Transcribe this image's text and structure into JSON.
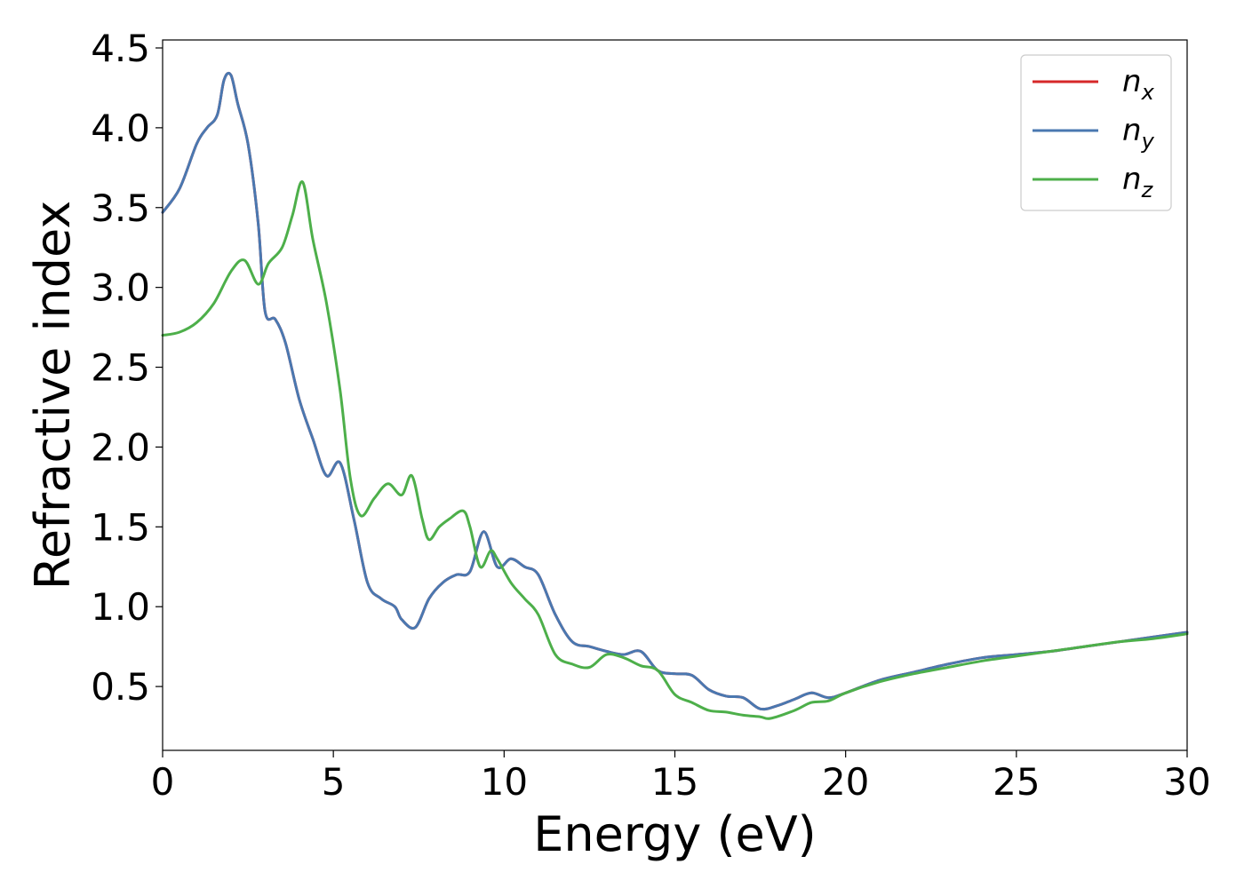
{
  "chart_data": {
    "type": "line",
    "xlabel": "Energy (eV)",
    "ylabel": "Refractive index",
    "xlim": [
      0,
      30
    ],
    "ylim": [
      0.1,
      4.55
    ],
    "xticks": [
      0,
      5,
      10,
      15,
      20,
      25,
      30
    ],
    "yticks": [
      0.5,
      1.0,
      1.5,
      2.0,
      2.5,
      3.0,
      3.5,
      4.0,
      4.5
    ],
    "xtick_labels": [
      "0",
      "5",
      "10",
      "15",
      "20",
      "25",
      "30"
    ],
    "ytick_labels": [
      "0.5",
      "1.0",
      "1.5",
      "2.0",
      "2.5",
      "3.0",
      "3.5",
      "4.0",
      "4.5"
    ],
    "grid": false,
    "legend_position": "top-right",
    "series": [
      {
        "name": "n",
        "subscript": "x",
        "color": "#d62728",
        "x": [
          0,
          0.5,
          1.0,
          1.3,
          1.6,
          1.8,
          2.0,
          2.2,
          2.5,
          2.8,
          3.0,
          3.3,
          3.6,
          4.0,
          4.4,
          4.8,
          5.2,
          5.6,
          6.0,
          6.4,
          6.8,
          7.0,
          7.4,
          7.8,
          8.2,
          8.6,
          9.0,
          9.4,
          9.8,
          10.2,
          10.6,
          11.0,
          11.5,
          12.0,
          12.5,
          13.0,
          13.5,
          14.0,
          14.5,
          15.0,
          15.5,
          16.0,
          16.5,
          17.0,
          17.5,
          18.0,
          18.5,
          19.0,
          19.5,
          20.0,
          21.0,
          22.0,
          23.0,
          24.0,
          25.0,
          26.0,
          27.0,
          28.0,
          29.0,
          30.0
        ],
        "y": [
          3.47,
          3.62,
          3.9,
          4.0,
          4.08,
          4.3,
          4.33,
          4.15,
          3.9,
          3.4,
          2.85,
          2.8,
          2.65,
          2.3,
          2.05,
          1.82,
          1.9,
          1.55,
          1.15,
          1.05,
          1.0,
          0.92,
          0.87,
          1.05,
          1.15,
          1.2,
          1.22,
          1.47,
          1.25,
          1.3,
          1.25,
          1.2,
          0.95,
          0.78,
          0.75,
          0.72,
          0.7,
          0.72,
          0.6,
          0.58,
          0.57,
          0.48,
          0.44,
          0.43,
          0.36,
          0.38,
          0.42,
          0.46,
          0.43,
          0.46,
          0.54,
          0.59,
          0.64,
          0.68,
          0.7,
          0.72,
          0.75,
          0.78,
          0.81,
          0.84
        ]
      },
      {
        "name": "n",
        "subscript": "y",
        "color": "#4a78b0",
        "x": [
          0,
          0.5,
          1.0,
          1.3,
          1.6,
          1.8,
          2.0,
          2.2,
          2.5,
          2.8,
          3.0,
          3.3,
          3.6,
          4.0,
          4.4,
          4.8,
          5.2,
          5.6,
          6.0,
          6.4,
          6.8,
          7.0,
          7.4,
          7.8,
          8.2,
          8.6,
          9.0,
          9.4,
          9.8,
          10.2,
          10.6,
          11.0,
          11.5,
          12.0,
          12.5,
          13.0,
          13.5,
          14.0,
          14.5,
          15.0,
          15.5,
          16.0,
          16.5,
          17.0,
          17.5,
          18.0,
          18.5,
          19.0,
          19.5,
          20.0,
          21.0,
          22.0,
          23.0,
          24.0,
          25.0,
          26.0,
          27.0,
          28.0,
          29.0,
          30.0
        ],
        "y": [
          3.47,
          3.62,
          3.9,
          4.0,
          4.08,
          4.3,
          4.33,
          4.15,
          3.9,
          3.4,
          2.85,
          2.8,
          2.65,
          2.3,
          2.05,
          1.82,
          1.9,
          1.55,
          1.15,
          1.05,
          1.0,
          0.92,
          0.87,
          1.05,
          1.15,
          1.2,
          1.22,
          1.47,
          1.25,
          1.3,
          1.25,
          1.2,
          0.95,
          0.78,
          0.75,
          0.72,
          0.7,
          0.72,
          0.6,
          0.58,
          0.57,
          0.48,
          0.44,
          0.43,
          0.36,
          0.38,
          0.42,
          0.46,
          0.43,
          0.46,
          0.54,
          0.59,
          0.64,
          0.68,
          0.7,
          0.72,
          0.75,
          0.78,
          0.81,
          0.84
        ]
      },
      {
        "name": "n",
        "subscript": "z",
        "color": "#4daf4a",
        "x": [
          0,
          0.5,
          1.0,
          1.5,
          2.0,
          2.4,
          2.8,
          3.1,
          3.5,
          3.8,
          4.1,
          4.4,
          4.8,
          5.2,
          5.5,
          5.8,
          6.2,
          6.6,
          7.0,
          7.3,
          7.6,
          7.8,
          8.1,
          8.4,
          8.8,
          9.0,
          9.3,
          9.6,
          9.8,
          10.2,
          10.6,
          11.0,
          11.5,
          12.0,
          12.5,
          13.0,
          13.5,
          14.0,
          14.5,
          15.0,
          15.5,
          16.0,
          16.5,
          17.0,
          17.5,
          17.8,
          18.5,
          19.0,
          19.5,
          20.0,
          21.0,
          22.0,
          23.0,
          24.0,
          25.0,
          26.0,
          27.0,
          28.0,
          29.0,
          30.0
        ],
        "y": [
          2.7,
          2.72,
          2.78,
          2.9,
          3.1,
          3.17,
          3.02,
          3.15,
          3.25,
          3.45,
          3.66,
          3.3,
          2.9,
          2.35,
          1.8,
          1.57,
          1.68,
          1.77,
          1.7,
          1.82,
          1.55,
          1.42,
          1.5,
          1.55,
          1.6,
          1.5,
          1.25,
          1.35,
          1.3,
          1.15,
          1.05,
          0.95,
          0.7,
          0.64,
          0.62,
          0.7,
          0.68,
          0.63,
          0.6,
          0.45,
          0.4,
          0.35,
          0.34,
          0.32,
          0.31,
          0.3,
          0.35,
          0.4,
          0.41,
          0.46,
          0.53,
          0.58,
          0.62,
          0.66,
          0.69,
          0.72,
          0.75,
          0.78,
          0.8,
          0.83
        ]
      }
    ]
  }
}
